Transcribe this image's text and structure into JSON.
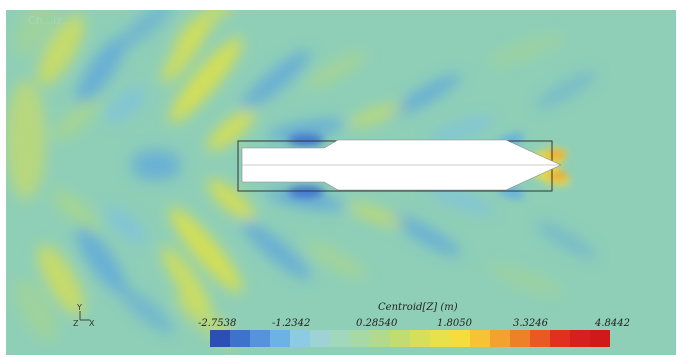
{
  "watermark": "Ch...iz...",
  "legend": {
    "title": "Centroid[Z] (m)",
    "ticks": [
      "-2.7538",
      "-1.2342",
      "0.28540",
      "1.8050",
      "3.3246",
      "4.8442"
    ],
    "colors": [
      "#2d4fb5",
      "#3f72cc",
      "#5693da",
      "#6cb3e4",
      "#8dcbe4",
      "#9dd3d4",
      "#a1d8bd",
      "#a6d9a3",
      "#b3d98c",
      "#c3dc72",
      "#d6df5a",
      "#e8e24a",
      "#f5dd3c",
      "#f7c233",
      "#f3a22d",
      "#ee8027",
      "#e85a22",
      "#e0301f",
      "#d81f1f",
      "#d01a1a"
    ]
  },
  "axes": {
    "y": "Y",
    "z": "Z",
    "x": "X"
  }
}
